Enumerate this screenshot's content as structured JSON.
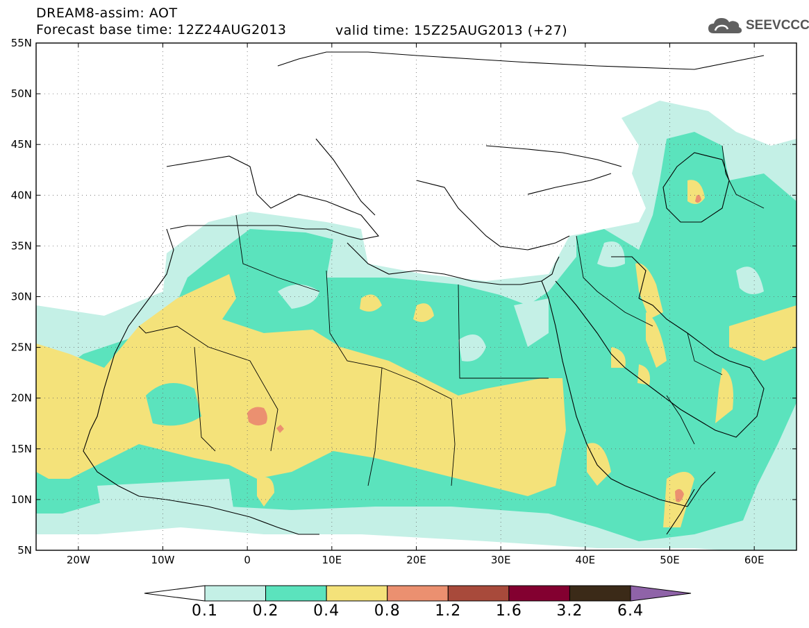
{
  "header": {
    "title": "DREAM8-assim: AOT",
    "base_time": "Forecast base time: 12Z24AUG2013",
    "valid_time": "valid time: 15Z25AUG2013 (+27)"
  },
  "logo": {
    "text": "SEEVCCC",
    "icon": "cloud-icon"
  },
  "map": {
    "lat_labels": [
      "55N",
      "50N",
      "45N",
      "40N",
      "35N",
      "30N",
      "25N",
      "20N",
      "15N",
      "10N",
      "5N"
    ],
    "lon_labels": [
      "20W",
      "10W",
      "0",
      "10E",
      "20E",
      "30E",
      "40E",
      "50E",
      "60E"
    ]
  },
  "legend": {
    "levels": [
      "0.1",
      "0.2",
      "0.4",
      "0.8",
      "1.2",
      "1.6",
      "3.2",
      "6.4"
    ],
    "colors": [
      "#ffffff",
      "#c4f0e6",
      "#5be3bd",
      "#f4e27a",
      "#eb9070",
      "#a84a3b",
      "#830030",
      "#3b2a18",
      "#8f63a8"
    ]
  }
}
